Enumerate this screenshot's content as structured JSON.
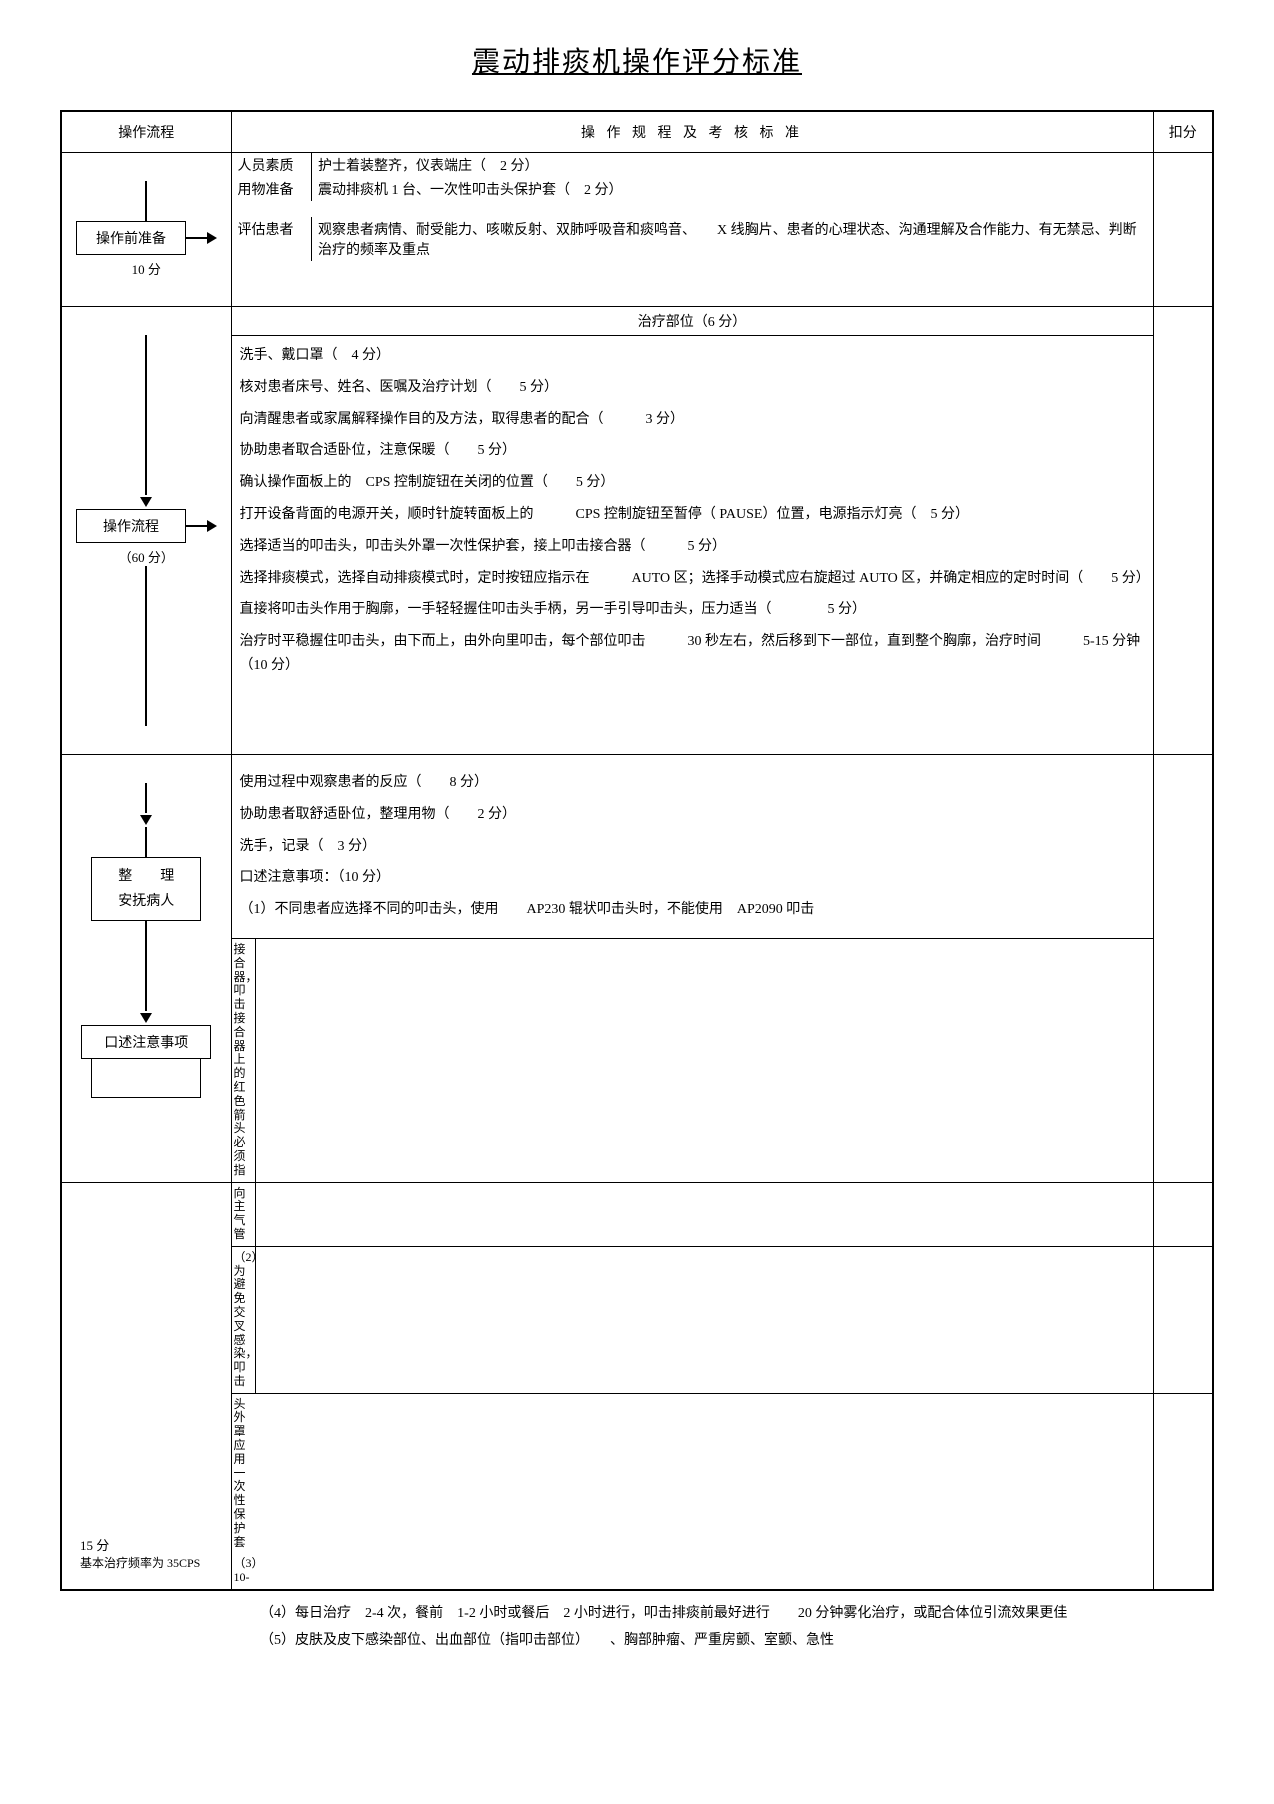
{
  "title": "震动排痰机操作评分标准",
  "headers": {
    "flow": "操作流程",
    "standard": "操 作 规 程 及 考 核 标 准",
    "score": "扣分"
  },
  "flow": {
    "prep_box": "操作前准备",
    "prep_score": "10 分",
    "proc_box": "操作流程",
    "proc_score": "（60 分）",
    "tidy_box1": "整　　理",
    "tidy_box2": "安抚病人",
    "notes_box": "口述注意事项",
    "bottom1": "15 分",
    "bottom2": "基本治疗频率为 35CPS"
  },
  "prep": {
    "r1_label": "人员素质",
    "r1_text": "护士着装整齐，仪表端庄（　2 分）",
    "r2_label": "用物准备",
    "r2_text": "震动排痰机 1 台、一次性叩击头保护套（　2 分）",
    "r3_label": "评估患者",
    "r3_text": "观察患者病情、耐受能力、咳嗽反射、双肺呼吸音和痰鸣音、　　X 线胸片、患者的心理状态、沟通理解及合作能力、有无禁忌、判断治疗的频率及重点"
  },
  "treat_label": "治疗部位（6 分）",
  "proc_lines": [
    "洗手、戴口罩（　4 分）",
    "核对患者床号、姓名、医嘱及治疗计划（　　5 分）",
    "向清醒患者或家属解释操作目的及方法，取得患者的配合（　　　3 分）",
    "协助患者取合适卧位，注意保暖（　　5 分）",
    "确认操作面板上的　CPS 控制旋钮在关闭的位置（　　5 分）",
    "打开设备背面的电源开关，顺时针旋转面板上的　　　CPS 控制旋钮至暂停（ PAUSE）位置，电源指示灯亮（　5 分）",
    "选择适当的叩击头，叩击头外罩一次性保护套，接上叩击接合器（　　　5 分）",
    "选择排痰模式，选择自动排痰模式时，定时按钮应指示在　　　AUTO 区；选择手动模式应右旋超过 AUTO 区，并确定相应的定时时间（　　5 分）",
    "直接将叩击头作用于胸廓，一手轻轻握住叩击头手柄，另一手引导叩击头，压力适当（　　　　5 分）",
    "治疗时平稳握住叩击头，由下而上，由外向里叩击，每个部位叩击　　　30 秒左右，然后移到下一部位，直到整个胸廓，治疗时间　　　5-15 分钟（10 分）"
  ],
  "tidy_lines": [
    "使用过程中观察患者的反应（　　8 分）",
    "协助患者取舒适卧位，整理用物（　　2 分）",
    "洗手，记录（　3 分）",
    "口述注意事项：（10 分）",
    "（1）不同患者应选择不同的叩击头，使用　　AP230 辊状叩击头时，不能使用　AP2090 叩击"
  ],
  "vert1": "接合器，叩击接合器上的红色箭头必须指",
  "vert2": "向主气管",
  "vert3": "（2）为避免交叉感染，叩击",
  "below1": "头外罩应用一次性保护套",
  "below2": "（3）10-",
  "bottom_lines": [
    "（4）每日治疗　2-4 次，餐前　1-2 小时或餐后　2 小时进行，叩击排痰前最好进行　　20 分钟雾化治疗，或配合体位引流效果更佳",
    "（5）皮肤及皮下感染部位、出血部位（指叩击部位）　　、胸部肿瘤、严重房颤、室颤、急性"
  ]
}
